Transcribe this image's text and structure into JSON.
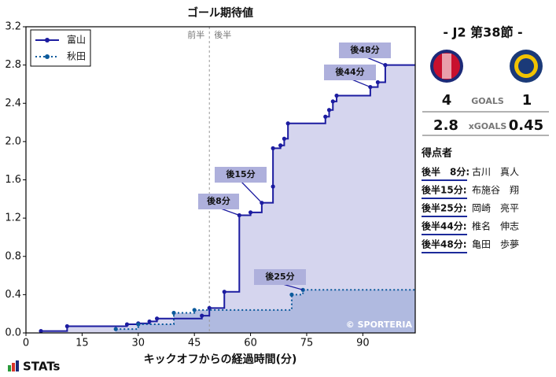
{
  "chart_data": {
    "type": "step",
    "title": "ゴール期待値",
    "x_label": "キックオフからの経過時間(分)",
    "xlim": [
      0,
      104
    ],
    "ylim": [
      0,
      3.2
    ],
    "xticks": [
      0,
      15,
      30,
      45,
      60,
      75,
      90
    ],
    "yticks": [
      {
        "value": 0,
        "label": "0.0"
      },
      0.4,
      0.8,
      1.2,
      1.6,
      {
        "value": 2,
        "label": "2.0"
      },
      2.4,
      2.8,
      3.2
    ],
    "half_line": 49,
    "half_labels": [
      "前半",
      "後半"
    ],
    "legend": "upper left",
    "series": [
      {
        "name": "富山",
        "color": "#1c1ca0",
        "fill": "#d5d5ee",
        "style": "solid",
        "x": [
          4,
          11,
          27,
          30,
          33,
          35,
          47,
          49,
          53,
          57,
          60,
          63,
          66,
          66,
          68,
          69,
          70,
          80,
          81,
          82,
          83,
          92,
          94,
          96
        ],
        "values": [
          0.02,
          0.07,
          0.09,
          0.1,
          0.12,
          0.15,
          0.18,
          0.26,
          0.43,
          1.23,
          1.26,
          1.36,
          1.53,
          1.93,
          1.96,
          2.03,
          2.19,
          2.26,
          2.33,
          2.42,
          2.48,
          2.57,
          2.62,
          2.8
        ]
      },
      {
        "name": "秋田",
        "color": "#0b5a9c",
        "fill": "#a9b5dd",
        "style": "dotted",
        "x": [
          24,
          30,
          39.5,
          45,
          71,
          74
        ],
        "values": [
          0.04,
          0.09,
          0.21,
          0.24,
          0.4,
          0.45
        ]
      }
    ],
    "annotations": [
      "後8分",
      "後15分",
      "後25分",
      "後44分",
      "後48分"
    ],
    "watermark": "© SPORTERIA"
  },
  "panel": {
    "round": "-  J2 第38節  -",
    "goals": {
      "home": "4",
      "label": "GOALS",
      "away": "1"
    },
    "xgoals": {
      "home": "2.8",
      "label": "xGOALS",
      "away": "0.45"
    },
    "scorers_title": "得点者",
    "scorers": [
      [
        "後半　8分:",
        "古川　真人"
      ],
      [
        "後半15分:",
        "布施谷　翔"
      ],
      [
        "後半25分:",
        "岡崎　亮平"
      ],
      [
        "後半44分:",
        "椎名　伸志"
      ],
      [
        "後半48分:",
        "亀田　歩夢"
      ]
    ]
  },
  "footer": {
    "logo": "STATs"
  }
}
